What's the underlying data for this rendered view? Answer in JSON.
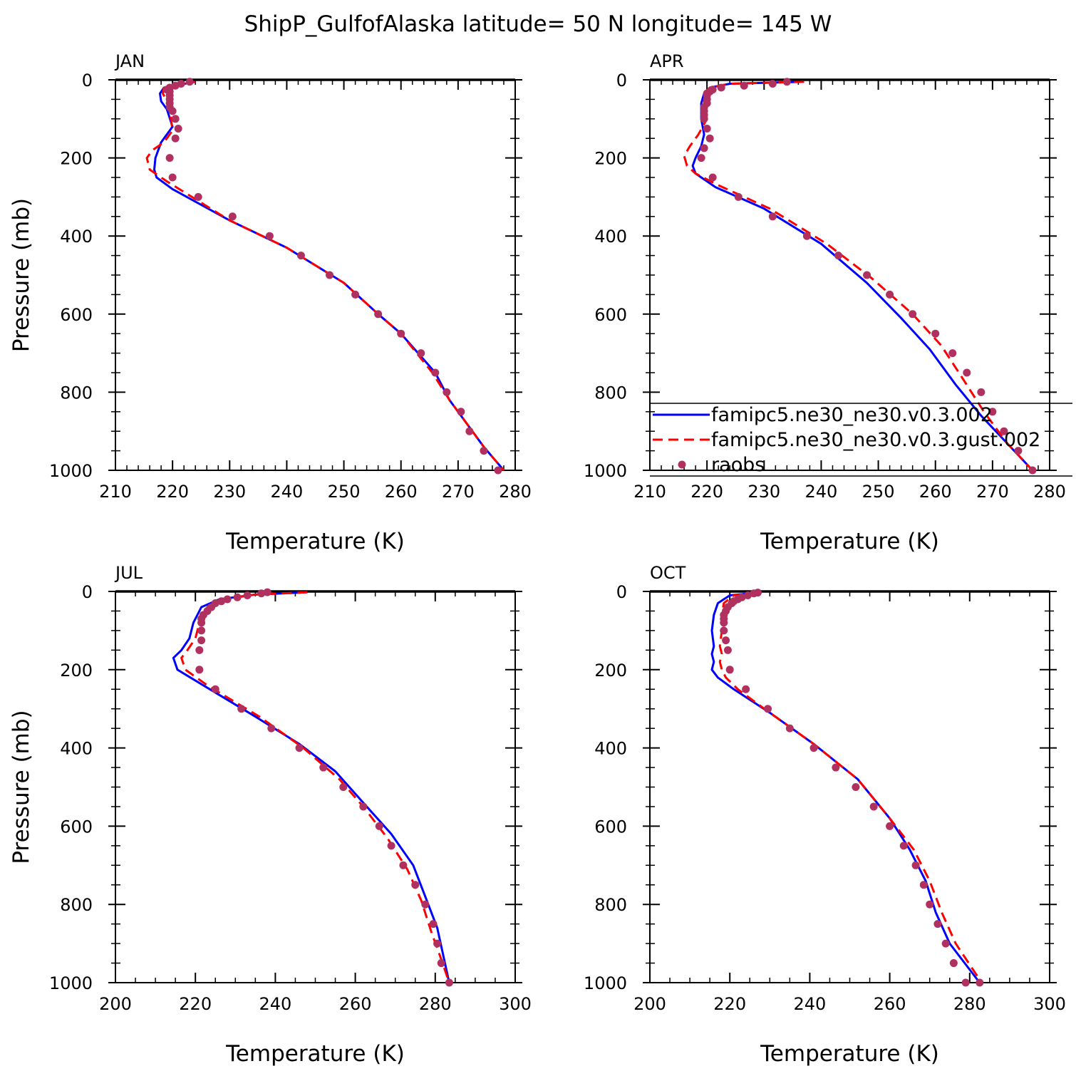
{
  "figure": {
    "title": "ShipP_GulfofAlaska  latitude= 50 N longitude= 145 W"
  },
  "legend": {
    "placement": "inside APR panel, lower portion",
    "entries": [
      {
        "label": "famipc5.ne30_ne30.v0.3.002",
        "color": "#0000ff",
        "style": "solid line"
      },
      {
        "label": "famipc5.ne30_ne30.v0.3.gust.002",
        "color": "#ff0000",
        "style": "dashed line"
      },
      {
        "label": "raobs",
        "color": "#b03060",
        "style": "dots"
      }
    ]
  },
  "colors": {
    "model": "#0000ff",
    "gust": "#ff0000",
    "obs": "#b03060"
  },
  "chart_data": [
    {
      "type": "line",
      "panel_label": "JAN",
      "xlabel": "Temperature (K)",
      "ylabel": "Pressure (mb)",
      "xlim": [
        210,
        280
      ],
      "ylim": [
        0,
        1000
      ],
      "y_inverted": true,
      "xticks": [
        210,
        220,
        230,
        240,
        250,
        260,
        270,
        280
      ],
      "yticks": [
        0,
        200,
        400,
        600,
        800,
        1000
      ],
      "series": [
        {
          "name": "famipc5.ne30_ne30.v0.3.002",
          "x": [
            224.0,
            218.5,
            217.8,
            218.0,
            219.0,
            220.0,
            218.0,
            217.0,
            216.8,
            217.2,
            220.0,
            230.0,
            240.0,
            250.0,
            256.0,
            260.0,
            266.0,
            268.5,
            271.0,
            274.5,
            278.0
          ],
          "y": [
            5,
            20,
            35,
            55,
            75,
            120,
            160,
            200,
            230,
            250,
            280,
            360,
            430,
            520,
            600,
            650,
            750,
            820,
            870,
            940,
            1000
          ]
        },
        {
          "name": "famipc5.ne30_ne30.v0.3.gust.002",
          "x": [
            224.0,
            218.5,
            218.3,
            219.0,
            219.5,
            220.0,
            218.5,
            216.5,
            215.5,
            216.0,
            219.0,
            230.0,
            240.0,
            250.0,
            256.0,
            260.0,
            265.5,
            268.5,
            271.0,
            274.5,
            278.0
          ],
          "y": [
            5,
            20,
            35,
            55,
            75,
            130,
            160,
            180,
            200,
            230,
            260,
            360,
            430,
            520,
            600,
            650,
            750,
            820,
            870,
            940,
            1000
          ]
        },
        {
          "name": "raobs",
          "x": [
            223.0,
            221.5,
            220.5,
            219.5,
            219.0,
            219.5,
            219.5,
            219.5,
            219.5,
            219.5,
            220.0,
            220.5,
            221.0,
            220.5,
            219.5,
            220.0,
            224.5,
            230.5,
            237.0,
            242.5,
            247.5,
            252.0,
            256.0,
            260.0,
            263.5,
            266.0,
            268.0,
            270.5,
            272.0,
            274.5,
            277.0
          ],
          "y": [
            5,
            10,
            15,
            20,
            25,
            30,
            40,
            50,
            60,
            70,
            80,
            100,
            125,
            150,
            200,
            250,
            300,
            350,
            400,
            450,
            500,
            550,
            600,
            650,
            700,
            750,
            800,
            850,
            900,
            950,
            1000
          ]
        }
      ]
    },
    {
      "type": "line",
      "panel_label": "APR",
      "xlabel": "Temperature (K)",
      "ylabel": "",
      "xlim": [
        210,
        280
      ],
      "ylim": [
        0,
        1000
      ],
      "y_inverted": true,
      "xticks": [
        210,
        220,
        230,
        240,
        250,
        260,
        270,
        280
      ],
      "yticks": [
        0,
        200,
        400,
        600,
        800,
        1000
      ],
      "series": [
        {
          "name": "famipc5.ne30_ne30.v0.3.002",
          "x": [
            237.0,
            224.0,
            220.5,
            219.5,
            219.0,
            219.0,
            219.5,
            219.0,
            218.0,
            217.5,
            218.0,
            221.5,
            230.0,
            240.0,
            248.0,
            254.0,
            259.0,
            263.5,
            268.0,
            272.5,
            277.0
          ],
          "y": [
            5,
            10,
            20,
            35,
            60,
            100,
            140,
            170,
            200,
            220,
            240,
            275,
            330,
            420,
            520,
            610,
            690,
            780,
            860,
            930,
            1000
          ]
        },
        {
          "name": "famipc5.ne30_ne30.v0.3.gust.002",
          "x": [
            237.0,
            224.0,
            220.5,
            219.5,
            219.5,
            220.0,
            218.5,
            217.0,
            216.0,
            216.5,
            218.0,
            222.0,
            231.0,
            241.0,
            249.0,
            256.0,
            261.0,
            265.0,
            268.5,
            272.5,
            277.0
          ],
          "y": [
            5,
            10,
            20,
            35,
            60,
            100,
            140,
            170,
            195,
            220,
            240,
            270,
            330,
            420,
            510,
            600,
            680,
            770,
            850,
            930,
            1000
          ]
        },
        {
          "name": "raobs",
          "x": [
            234.0,
            231.5,
            226.5,
            222.5,
            221.0,
            220.5,
            220.0,
            220.0,
            220.0,
            220.0,
            219.5,
            219.5,
            219.5,
            219.5,
            220.0,
            220.5,
            219.5,
            219.0,
            221.0,
            225.5,
            231.5,
            237.5,
            243.0,
            248.0,
            252.0,
            256.0,
            260.0,
            263.0,
            265.5,
            268.0,
            270.0,
            272.0,
            274.5,
            277.0
          ],
          "y": [
            5,
            10,
            15,
            20,
            25,
            30,
            35,
            40,
            50,
            60,
            70,
            80,
            90,
            100,
            125,
            150,
            175,
            200,
            250,
            300,
            350,
            400,
            450,
            500,
            550,
            600,
            650,
            700,
            750,
            800,
            850,
            900,
            950,
            1000
          ]
        }
      ]
    },
    {
      "type": "line",
      "panel_label": "JUL",
      "xlabel": "Temperature (K)",
      "ylabel": "Pressure (mb)",
      "xlim": [
        200,
        300
      ],
      "ylim": [
        0,
        1000
      ],
      "y_inverted": true,
      "xticks": [
        200,
        220,
        240,
        260,
        280,
        300
      ],
      "yticks": [
        0,
        200,
        400,
        600,
        800,
        1000
      ],
      "series": [
        {
          "name": "famipc5.ne30_ne30.v0.3.002",
          "x": [
            248.0,
            235.0,
            226.0,
            221.5,
            219.5,
            218.5,
            216.5,
            214.5,
            215.5,
            222.0,
            235.0,
            246.0,
            255.0,
            262.0,
            269.0,
            274.5,
            277.5,
            280.5,
            282.0,
            283.5
          ],
          "y": [
            2,
            8,
            20,
            40,
            80,
            120,
            150,
            170,
            200,
            240,
            320,
            390,
            460,
            540,
            620,
            700,
            780,
            860,
            930,
            1000
          ]
        },
        {
          "name": "famipc5.ne30_ne30.v0.3.gust.002",
          "x": [
            248.0,
            235.0,
            227.0,
            223.0,
            221.0,
            220.0,
            218.0,
            216.5,
            217.5,
            223.0,
            236.0,
            247.0,
            256.0,
            262.0,
            268.0,
            273.0,
            276.5,
            279.0,
            281.5,
            283.5
          ],
          "y": [
            2,
            8,
            20,
            40,
            80,
            120,
            150,
            170,
            200,
            240,
            320,
            400,
            480,
            550,
            630,
            710,
            790,
            870,
            940,
            1000
          ]
        },
        {
          "name": "raobs",
          "x": [
            238.0,
            236.5,
            233.0,
            230.5,
            228.0,
            226.5,
            225.0,
            224.0,
            223.0,
            222.0,
            221.5,
            221.5,
            221.5,
            221.5,
            221.0,
            221.0,
            225.0,
            231.5,
            239.0,
            246.0,
            252.0,
            257.0,
            262.0,
            266.0,
            269.0,
            272.0,
            275.0,
            277.5,
            279.5,
            280.5,
            281.5,
            283.5
          ],
          "y": [
            2,
            5,
            10,
            15,
            20,
            25,
            30,
            40,
            50,
            60,
            70,
            80,
            100,
            125,
            150,
            200,
            250,
            300,
            350,
            400,
            450,
            500,
            550,
            600,
            650,
            700,
            750,
            800,
            850,
            900,
            950,
            1000
          ]
        }
      ]
    },
    {
      "type": "line",
      "panel_label": "OCT",
      "xlabel": "Temperature (K)",
      "ylabel": "",
      "xlim": [
        200,
        300
      ],
      "ylim": [
        0,
        1000
      ],
      "y_inverted": true,
      "xticks": [
        200,
        220,
        240,
        260,
        280,
        300
      ],
      "yticks": [
        0,
        200,
        400,
        600,
        800,
        1000
      ],
      "series": [
        {
          "name": "famipc5.ne30_ne30.v0.3.002",
          "x": [
            227.0,
            220.0,
            217.0,
            216.0,
            215.5,
            216.0,
            215.5,
            216.0,
            215.5,
            217.0,
            221.0,
            230.0,
            241.0,
            252.0,
            260.0,
            265.0,
            269.0,
            271.5,
            275.0,
            282.5
          ],
          "y": [
            3,
            10,
            30,
            60,
            100,
            140,
            160,
            180,
            200,
            220,
            250,
            310,
            390,
            480,
            580,
            660,
            740,
            820,
            900,
            1000
          ]
        },
        {
          "name": "famipc5.ne30_ne30.v0.3.gust.002",
          "x": [
            227.0,
            221.0,
            218.5,
            218.0,
            218.0,
            217.5,
            218.0,
            217.5,
            218.0,
            219.0,
            222.0,
            230.0,
            241.0,
            252.0,
            260.0,
            266.0,
            270.0,
            273.0,
            276.5,
            283.0
          ],
          "y": [
            3,
            10,
            30,
            60,
            100,
            140,
            160,
            180,
            200,
            220,
            250,
            310,
            390,
            480,
            580,
            660,
            740,
            820,
            900,
            1000
          ]
        },
        {
          "name": "raobs",
          "x": [
            227.0,
            226.0,
            224.5,
            223.0,
            222.0,
            221.0,
            220.5,
            219.5,
            219.0,
            218.5,
            218.5,
            218.5,
            218.5,
            219.0,
            219.5,
            220.0,
            224.0,
            229.5,
            235.0,
            241.0,
            246.5,
            251.5,
            256.0,
            260.0,
            263.5,
            266.5,
            268.5,
            270.0,
            272.0,
            274.0,
            276.0,
            279.0,
            282.5
          ],
          "y": [
            3,
            5,
            10,
            15,
            20,
            25,
            30,
            40,
            50,
            60,
            70,
            80,
            100,
            125,
            150,
            200,
            250,
            300,
            350,
            400,
            450,
            500,
            550,
            600,
            650,
            700,
            750,
            800,
            850,
            900,
            950,
            1000,
            1000
          ]
        }
      ]
    }
  ]
}
